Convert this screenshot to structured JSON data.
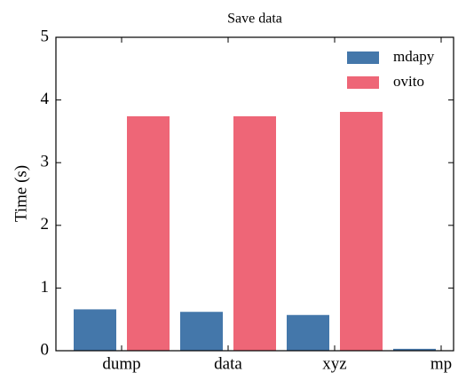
{
  "chart_data": {
    "type": "bar",
    "title": "Save data",
    "ylabel": "Time (s)",
    "categories": [
      "dump",
      "data",
      "xyz",
      "mp"
    ],
    "series": [
      {
        "name": "mdapy",
        "color": "#4477aa",
        "values": [
          0.66,
          0.62,
          0.57,
          0.03
        ]
      },
      {
        "name": "ovito",
        "color": "#ee6677",
        "values": [
          3.74,
          3.74,
          3.81,
          null
        ]
      }
    ],
    "ylim": [
      0,
      5
    ],
    "yticks": [
      0,
      1,
      2,
      3,
      4,
      5
    ],
    "legend": "upper right",
    "grid": false
  }
}
